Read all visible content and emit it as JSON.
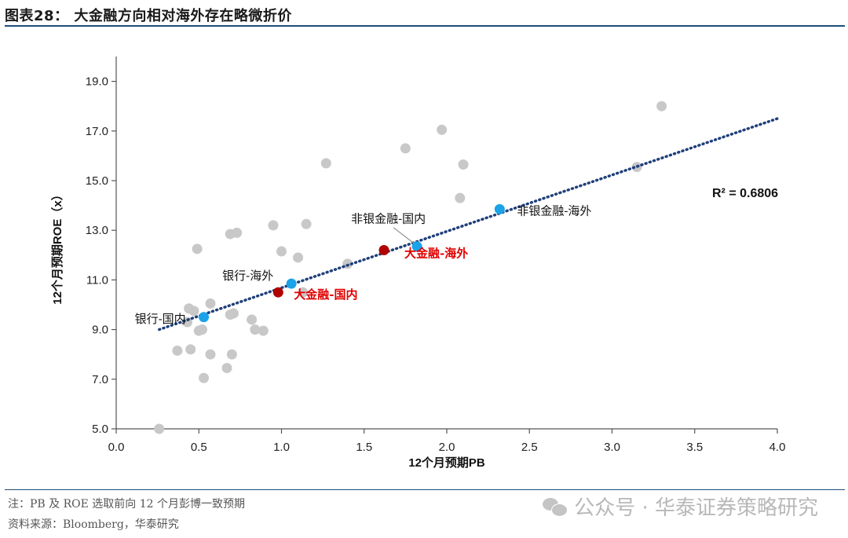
{
  "header": {
    "title": "图表28： 大金融方向相对海外存在略微折价"
  },
  "notes": {
    "line1": "注：PB 及 ROE 选取前向 12 个月彭博一致预期",
    "line2": "资料来源：Bloomberg，华泰研究"
  },
  "watermark": {
    "text": "公众号 · 华泰证券策略研究"
  },
  "chart_data": {
    "type": "scatter",
    "xlabel": "12个月预期PB",
    "ylabel": "12个月预期ROE（x）",
    "xlim": [
      0.0,
      4.0
    ],
    "ylim": [
      5.0,
      20.0
    ],
    "xticks": [
      "0.0",
      "0.5",
      "1.0",
      "1.5",
      "2.0",
      "2.5",
      "3.0",
      "3.5",
      "4.0"
    ],
    "yticks": [
      "5.0",
      "7.0",
      "9.0",
      "11.0",
      "13.0",
      "15.0",
      "17.0",
      "19.0"
    ],
    "grid": false,
    "trendline": {
      "x": [
        0.26,
        4.0
      ],
      "y": [
        9.0,
        17.5
      ],
      "style": "dotted",
      "color": "#1f3f7a"
    },
    "r_squared_label": "R² = 0.6806",
    "background_points": {
      "color": "#c8c8c8",
      "points": [
        [
          0.26,
          5.0
        ],
        [
          0.37,
          8.15
        ],
        [
          0.45,
          8.2
        ],
        [
          0.53,
          7.05
        ],
        [
          0.57,
          8.0
        ],
        [
          0.67,
          7.45
        ],
        [
          0.7,
          8.0
        ],
        [
          0.5,
          8.95
        ],
        [
          0.52,
          9.0
        ],
        [
          0.43,
          9.3
        ],
        [
          0.44,
          9.85
        ],
        [
          0.47,
          9.75
        ],
        [
          0.57,
          10.05
        ],
        [
          0.69,
          9.6
        ],
        [
          0.71,
          9.65
        ],
        [
          0.82,
          9.4
        ],
        [
          0.84,
          9.0
        ],
        [
          0.89,
          8.95
        ],
        [
          0.49,
          12.25
        ],
        [
          0.69,
          12.85
        ],
        [
          0.73,
          12.9
        ],
        [
          0.95,
          13.2
        ],
        [
          1.0,
          12.15
        ],
        [
          1.1,
          11.9
        ],
        [
          1.15,
          13.25
        ],
        [
          1.13,
          10.5
        ],
        [
          1.27,
          15.7
        ],
        [
          1.4,
          11.65
        ],
        [
          1.75,
          16.3
        ],
        [
          1.97,
          17.05
        ],
        [
          2.1,
          15.65
        ],
        [
          2.08,
          14.3
        ],
        [
          3.15,
          15.55
        ],
        [
          3.3,
          18.0
        ]
      ]
    },
    "series": [
      {
        "name": "银行-国内",
        "label": "银行-国内",
        "color": "#1aa3e8",
        "x": 0.53,
        "y": 9.5
      },
      {
        "name": "银行-海外",
        "label": "银行-海外",
        "color": "#1aa3e8",
        "x": 1.06,
        "y": 10.85
      },
      {
        "name": "非银金融-国内",
        "label": "非银金融-国内",
        "color": "#1aa3e8",
        "x": 1.82,
        "y": 12.35
      },
      {
        "name": "非银金融-海外",
        "label": "非银金融-海外",
        "color": "#1aa3e8",
        "x": 2.32,
        "y": 13.85
      },
      {
        "name": "大金融-国内",
        "label": "大金融-国内",
        "color": "#b00000",
        "x": 0.98,
        "y": 10.5
      },
      {
        "name": "大金融-海外",
        "label": "大金融-海外",
        "color": "#b00000",
        "x": 1.62,
        "y": 12.2
      }
    ]
  }
}
